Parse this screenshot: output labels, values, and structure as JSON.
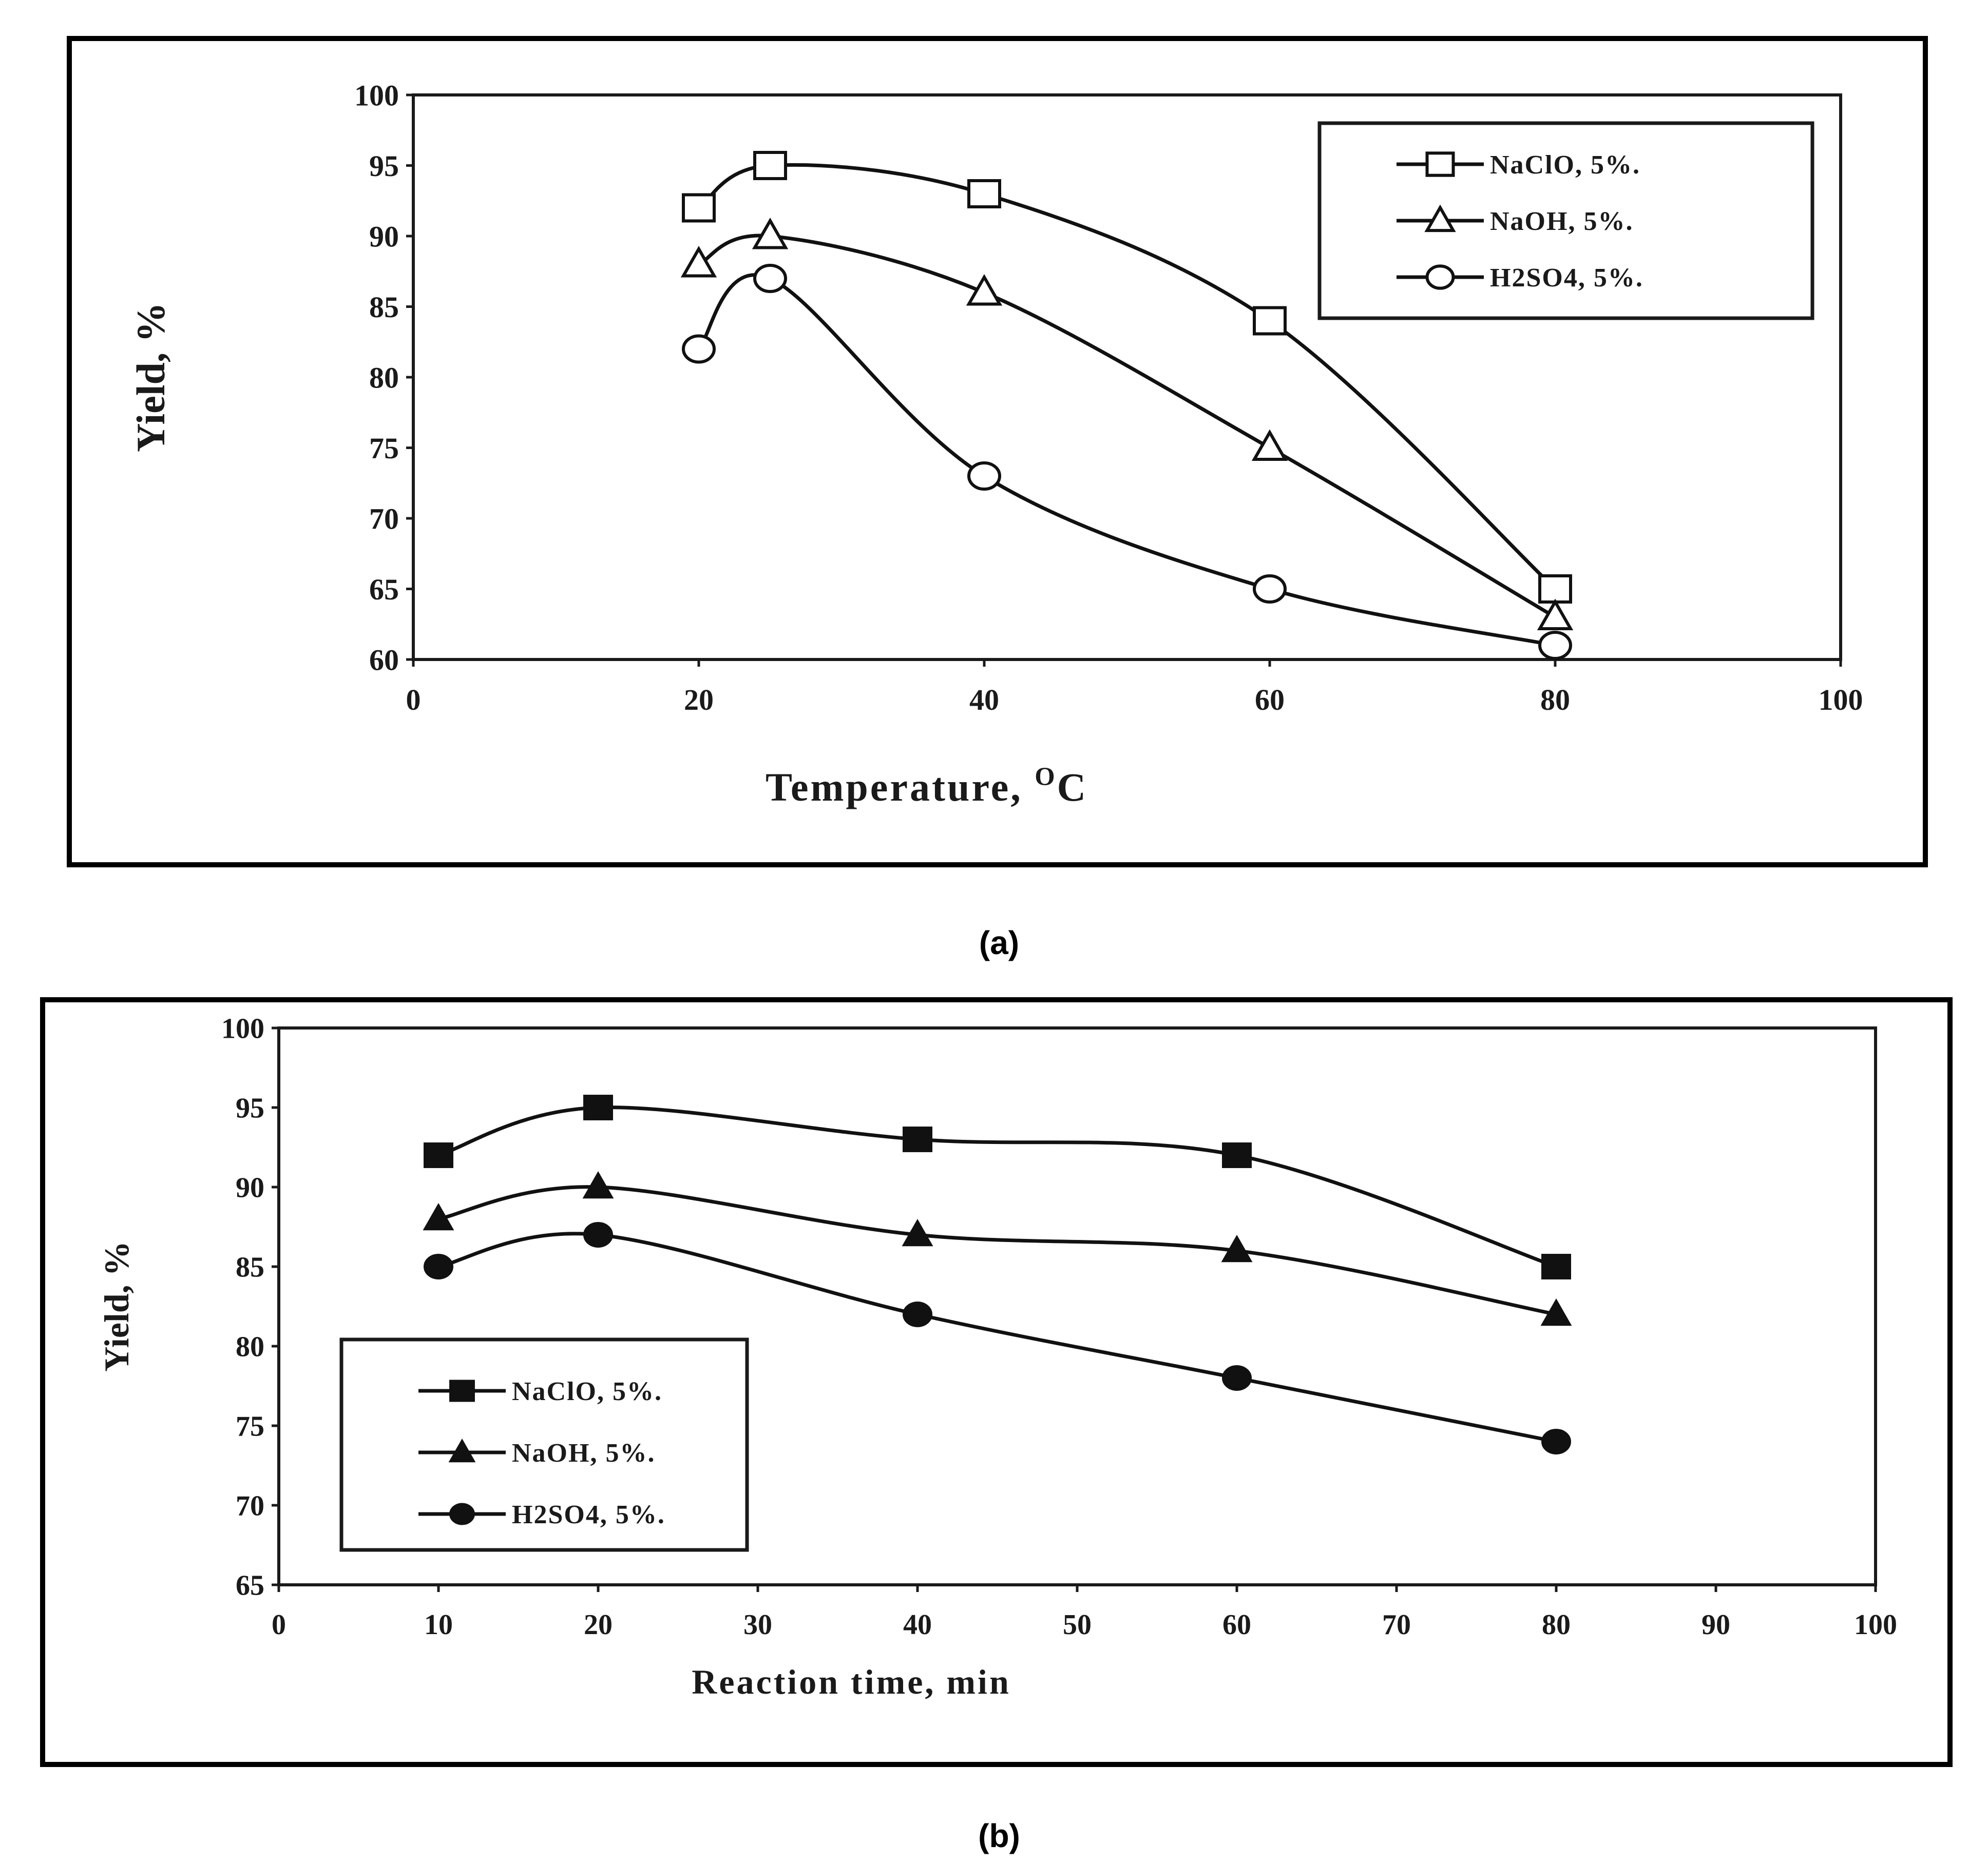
{
  "panels": {
    "a": {
      "label": "(a)"
    },
    "b": {
      "label": "(b)"
    }
  },
  "chart_data": [
    {
      "type": "line",
      "title": "",
      "xlabel": "Temperature, ",
      "xlabel_sup": "O",
      "xlabel_tail": "C",
      "ylabel": "Yield, %",
      "xlim": [
        0,
        100
      ],
      "ylim": [
        60,
        100
      ],
      "xticks": [
        0,
        20,
        40,
        60,
        80,
        100
      ],
      "yticks": [
        60,
        65,
        70,
        75,
        80,
        85,
        90,
        95,
        100
      ],
      "legend_position": "top-right",
      "marker_fill": "open",
      "series": [
        {
          "name": "NaClO, 5%.",
          "marker": "square",
          "x": [
            20,
            25,
            40,
            60,
            80
          ],
          "y": [
            92,
            95,
            93,
            84,
            65
          ]
        },
        {
          "name": "NaOH, 5%.",
          "marker": "triangle",
          "x": [
            20,
            25,
            40,
            60,
            80
          ],
          "y": [
            88,
            90,
            86,
            75,
            63
          ]
        },
        {
          "name": "H2SO4, 5%.",
          "marker": "circle",
          "x": [
            20,
            25,
            40,
            60,
            80
          ],
          "y": [
            82,
            87,
            73,
            65,
            61
          ]
        }
      ]
    },
    {
      "type": "line",
      "title": "",
      "xlabel": "Reaction time, min",
      "ylabel": "Yield, %",
      "xlim": [
        0,
        100
      ],
      "ylim": [
        65,
        100
      ],
      "xticks": [
        0,
        10,
        20,
        30,
        40,
        50,
        60,
        70,
        80,
        90,
        100
      ],
      "yticks": [
        65,
        70,
        75,
        80,
        85,
        90,
        95,
        100
      ],
      "legend_position": "bottom-left",
      "marker_fill": "filled",
      "series": [
        {
          "name": "NaClO, 5%.",
          "marker": "square",
          "x": [
            10,
            20,
            40,
            60,
            80
          ],
          "y": [
            92,
            95,
            93,
            92,
            85
          ]
        },
        {
          "name": "NaOH, 5%.",
          "marker": "triangle",
          "x": [
            10,
            20,
            40,
            60,
            80
          ],
          "y": [
            88,
            90,
            87,
            86,
            82
          ]
        },
        {
          "name": "H2SO4, 5%.",
          "marker": "circle",
          "x": [
            10,
            20,
            40,
            60,
            80
          ],
          "y": [
            85,
            87,
            82,
            78,
            74
          ]
        }
      ]
    }
  ]
}
